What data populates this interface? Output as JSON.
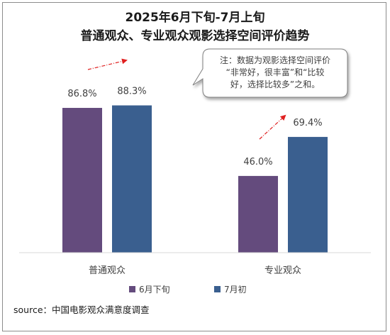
{
  "chart_data": {
    "type": "bar",
    "title": "2025年6月下旬-7月上旬",
    "subtitle": "普通观众、专业观众观影选择空间评价趋势",
    "categories": [
      "普通观众",
      "专业观众"
    ],
    "series": [
      {
        "name": "6月下旬",
        "values": [
          86.8,
          46.0
        ],
        "labels": [
          "86.8%",
          "46.0%"
        ],
        "color": "#644b7d"
      },
      {
        "name": "7月初",
        "values": [
          88.3,
          69.4
        ],
        "labels": [
          "88.3%",
          "69.4%"
        ],
        "color": "#3a5f8f"
      }
    ],
    "ylim": [
      0,
      120
    ],
    "grid": false,
    "legend_position": "bottom",
    "annotation": {
      "lines": [
        "注：数据为观影选择空间评价",
        "“非常好，很丰富”和“比较",
        "好，选择比较多”之和。"
      ]
    },
    "trend_arrow_color": "#e02020"
  },
  "source": "source：中国电影观众满意度调查"
}
